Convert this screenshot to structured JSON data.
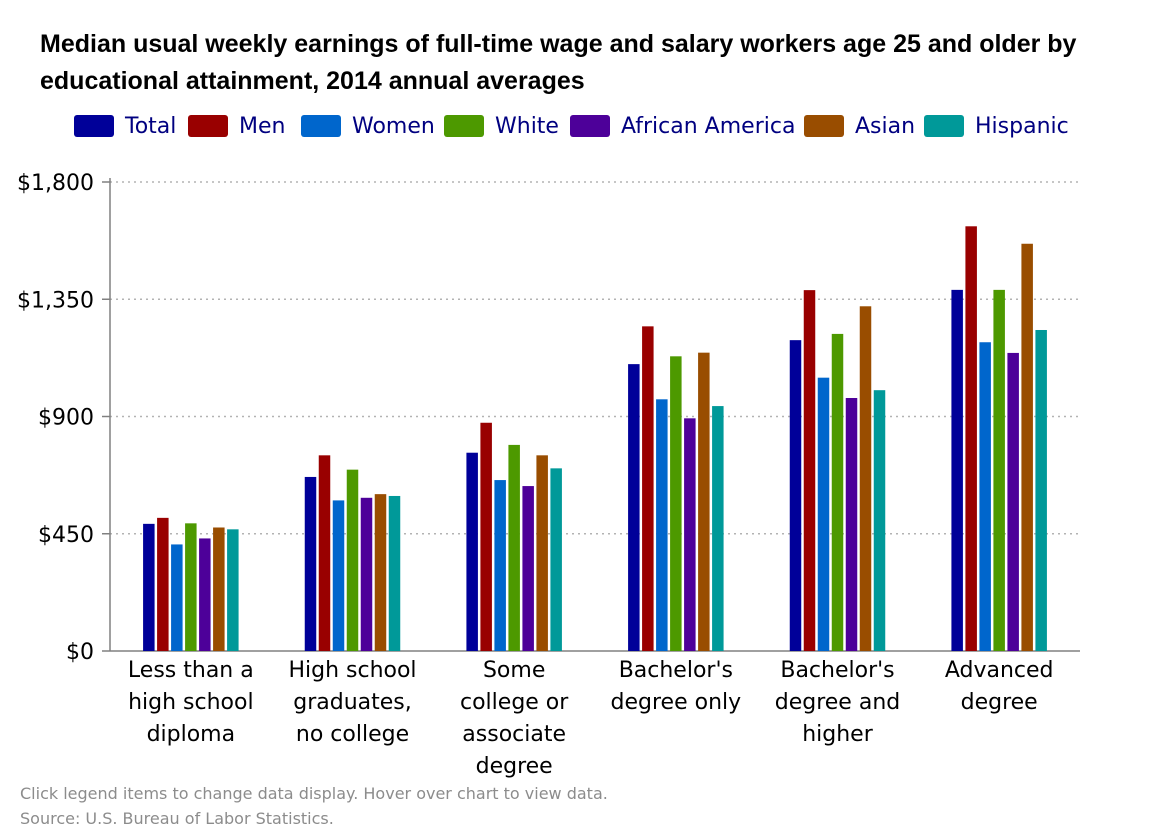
{
  "title": "Median usual weekly earnings of full-time wage and salary workers age 25 and older by educational attainment, 2014 annual averages",
  "footer": {
    "note": "Click legend items to change data display. Hover over chart to view data.",
    "source": "Source: U.S. Bureau of Labor Statistics."
  },
  "chart_data": {
    "type": "bar",
    "title": "Median usual weekly earnings of full-time wage and salary workers age 25 and older by educational attainment, 2014 annual averages",
    "xlabel": "",
    "ylabel": "",
    "ylim": [
      0,
      1800
    ],
    "yticks": [
      0,
      450,
      900,
      1350,
      1800
    ],
    "ytick_labels": [
      "$0",
      "$450",
      "$900",
      "$1,350",
      "$1,800"
    ],
    "grid": true,
    "legend_position": "top",
    "categories": [
      "Less than a high school diploma",
      "High school graduates, no college",
      "Some college or associate degree",
      "Bachelor's degree only",
      "Bachelor's degree and higher",
      "Advanced degree"
    ],
    "category_label_lines": [
      [
        "Less than a",
        "high school",
        "diploma"
      ],
      [
        "High school",
        "graduates,",
        "no college"
      ],
      [
        "Some",
        "college or",
        "associate",
        "degree"
      ],
      [
        "Bachelor's",
        "degree only"
      ],
      [
        "Bachelor's",
        "degree and",
        "higher"
      ],
      [
        "Advanced",
        "degree"
      ]
    ],
    "series": [
      {
        "name": "Total",
        "color": "#000099",
        "values": [
          488,
          668,
          761,
          1101,
          1193,
          1386
        ]
      },
      {
        "name": "Men",
        "color": "#990000",
        "values": [
          511,
          751,
          876,
          1246,
          1385,
          1630
        ]
      },
      {
        "name": "Women",
        "color": "#0066cc",
        "values": [
          409,
          578,
          656,
          966,
          1049,
          1185
        ]
      },
      {
        "name": "White",
        "color": "#4d9900",
        "values": [
          490,
          696,
          791,
          1131,
          1217,
          1386
        ]
      },
      {
        "name": "African America",
        "color": "#4d0099",
        "values": [
          432,
          588,
          633,
          893,
          971,
          1144
        ]
      },
      {
        "name": "Asian",
        "color": "#994d00",
        "values": [
          474,
          602,
          751,
          1145,
          1323,
          1563
        ]
      },
      {
        "name": "Hispanic",
        "color": "#009999",
        "values": [
          467,
          595,
          701,
          940,
          1001,
          1232
        ]
      }
    ]
  }
}
